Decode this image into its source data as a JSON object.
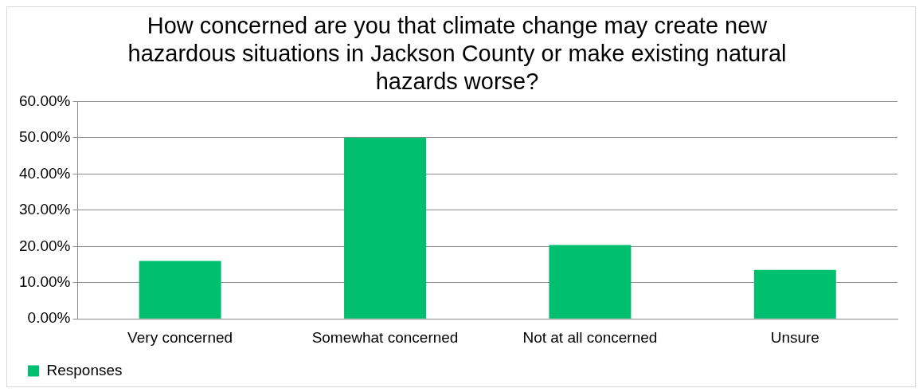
{
  "chart_data": {
    "type": "bar",
    "title": "How concerned are you that climate change may create new hazardous situations in Jackson County or make existing natural hazards worse?",
    "categories": [
      "Very concerned",
      "Somewhat concerned",
      "Not at all concerned",
      "Unsure"
    ],
    "series": [
      {
        "name": "Responses",
        "color": "#00bf6f",
        "values": [
          16,
          50,
          20.4,
          13.5
        ]
      }
    ],
    "ylim": [
      0,
      60
    ],
    "yticks": [
      {
        "value": 0,
        "label": "0.00%"
      },
      {
        "value": 10,
        "label": "10.00%"
      },
      {
        "value": 20,
        "label": "20.00%"
      },
      {
        "value": 30,
        "label": "30.00%"
      },
      {
        "value": 40,
        "label": "40.00%"
      },
      {
        "value": 50,
        "label": "50.00%"
      },
      {
        "value": 60,
        "label": "60.00%"
      }
    ],
    "grid": "y",
    "legend": "bottom left"
  }
}
